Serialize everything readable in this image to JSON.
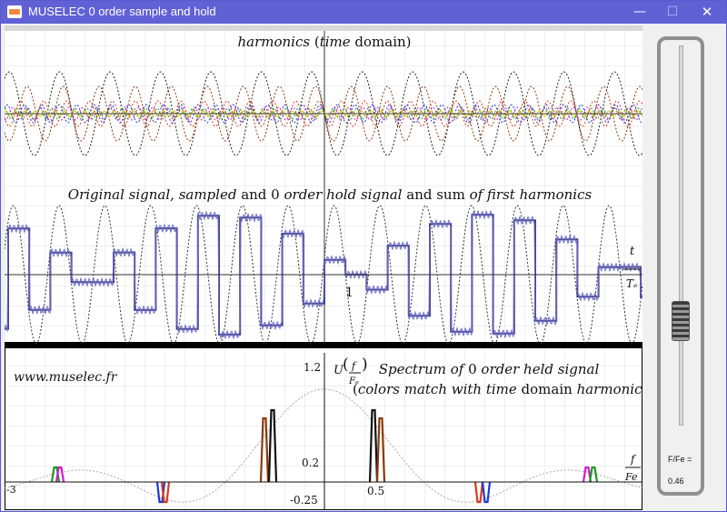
{
  "window": {
    "title": "MUSELEC 0 order sample and hold",
    "minimize": "—",
    "maximize": "☐",
    "close": "✕"
  },
  "top_panel": {
    "title_parts": [
      "harmonics",
      " (",
      "time",
      " domain)"
    ]
  },
  "middle_panel": {
    "title_parts": [
      "Original signal",
      ", ",
      "sampled",
      " and 0 ",
      "order hold signal",
      " and sum ",
      "of first harmonics"
    ],
    "axis_label_top": "t",
    "axis_label_bottom": "Tₑ",
    "tick_1": "1"
  },
  "bottom_panel": {
    "watermark": "www.muselec.fr",
    "spectrum_line1_parts": [
      "Spectrum of",
      " 0 ",
      "order held signal"
    ],
    "spectrum_line2_parts": [
      "(",
      "colors match with ",
      "time",
      " domain ",
      "harmonics",
      ")"
    ],
    "y_axis_label": "U",
    "y_axis_frac_top": "f",
    "y_axis_frac_bottom": "Fₑ",
    "x_axis_frac_top": "f",
    "x_axis_frac_bottom": "Fe",
    "tick_y_max": "1.2",
    "tick_y_mid": "0.2",
    "tick_y_min": "-0.25",
    "tick_x_left": "-3",
    "tick_x_half": "0.5"
  },
  "control": {
    "ratio_label": "F/Fe =",
    "ratio_value": "0.46",
    "slider_level": 0.25
  },
  "colors": {
    "titlebar": "#6161d6",
    "hold_signal": "#44448a",
    "harmonic_red": "#d93a1a",
    "harmonic_blue": "#1a3ad9",
    "harmonic_green": "#1a9a1a",
    "harmonic_magenta": "#d01ad0",
    "harmonic_brown": "#8b3a0a",
    "harmonic_yellow": "#d8c800"
  }
}
